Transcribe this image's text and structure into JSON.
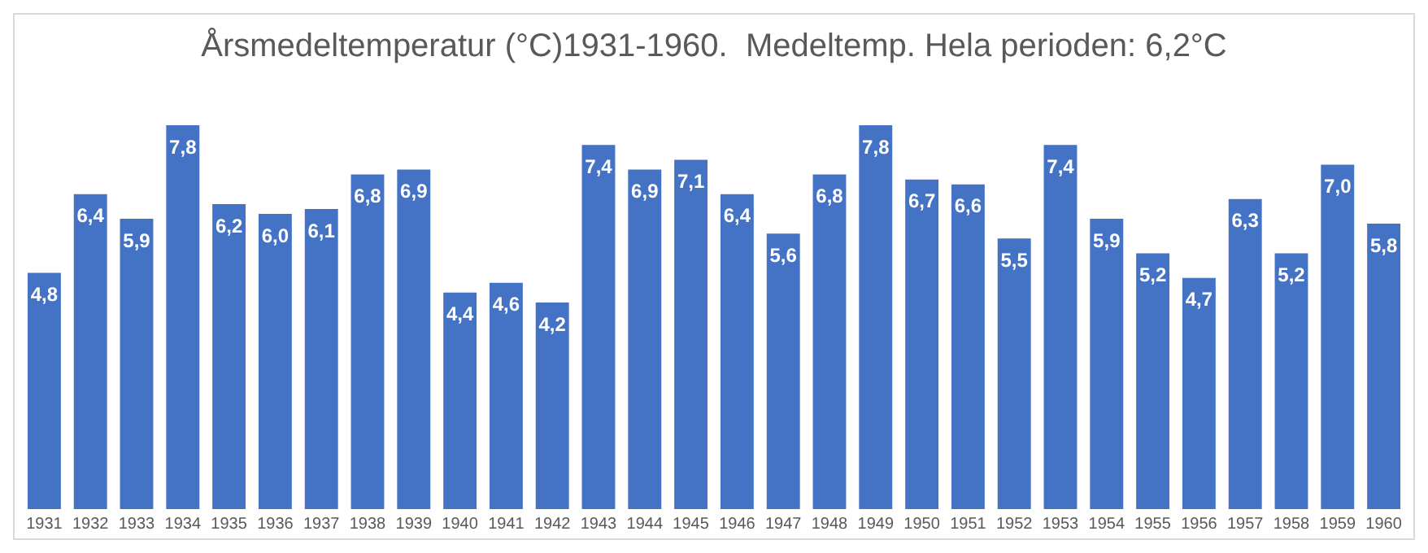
{
  "chart_data": {
    "type": "bar",
    "title": "Årsmedeltemperatur (°C)1931-1960.  Medeltemp. Hela perioden: 6,2°C",
    "categories": [
      "1931",
      "1932",
      "1933",
      "1934",
      "1935",
      "1936",
      "1937",
      "1938",
      "1939",
      "1940",
      "1941",
      "1942",
      "1943",
      "1944",
      "1945",
      "1946",
      "1947",
      "1948",
      "1949",
      "1950",
      "1951",
      "1952",
      "1953",
      "1954",
      "1955",
      "1956",
      "1957",
      "1958",
      "1959",
      "1960"
    ],
    "values": [
      4.8,
      6.4,
      5.9,
      7.8,
      6.2,
      6.0,
      6.1,
      6.8,
      6.9,
      4.4,
      4.6,
      4.2,
      7.4,
      6.9,
      7.1,
      6.4,
      5.6,
      6.8,
      7.8,
      6.7,
      6.6,
      5.5,
      7.4,
      5.9,
      5.2,
      4.7,
      6.3,
      5.2,
      7.0,
      5.8
    ],
    "value_labels": [
      "4,8",
      "6,4",
      "5,9",
      "7,8",
      "6,2",
      "6,0",
      "6,1",
      "6,8",
      "6,9",
      "4,4",
      "4,6",
      "4,2",
      "7,4",
      "6,9",
      "7,1",
      "6,4",
      "5,6",
      "6,8",
      "7,8",
      "6,7",
      "6,6",
      "5,5",
      "7,4",
      "5,9",
      "5,2",
      "4,7",
      "6,3",
      "5,2",
      "7,0",
      "5,8"
    ],
    "color": "#4472c4",
    "grid": false,
    "legend": false,
    "tick_labels": "x"
  }
}
